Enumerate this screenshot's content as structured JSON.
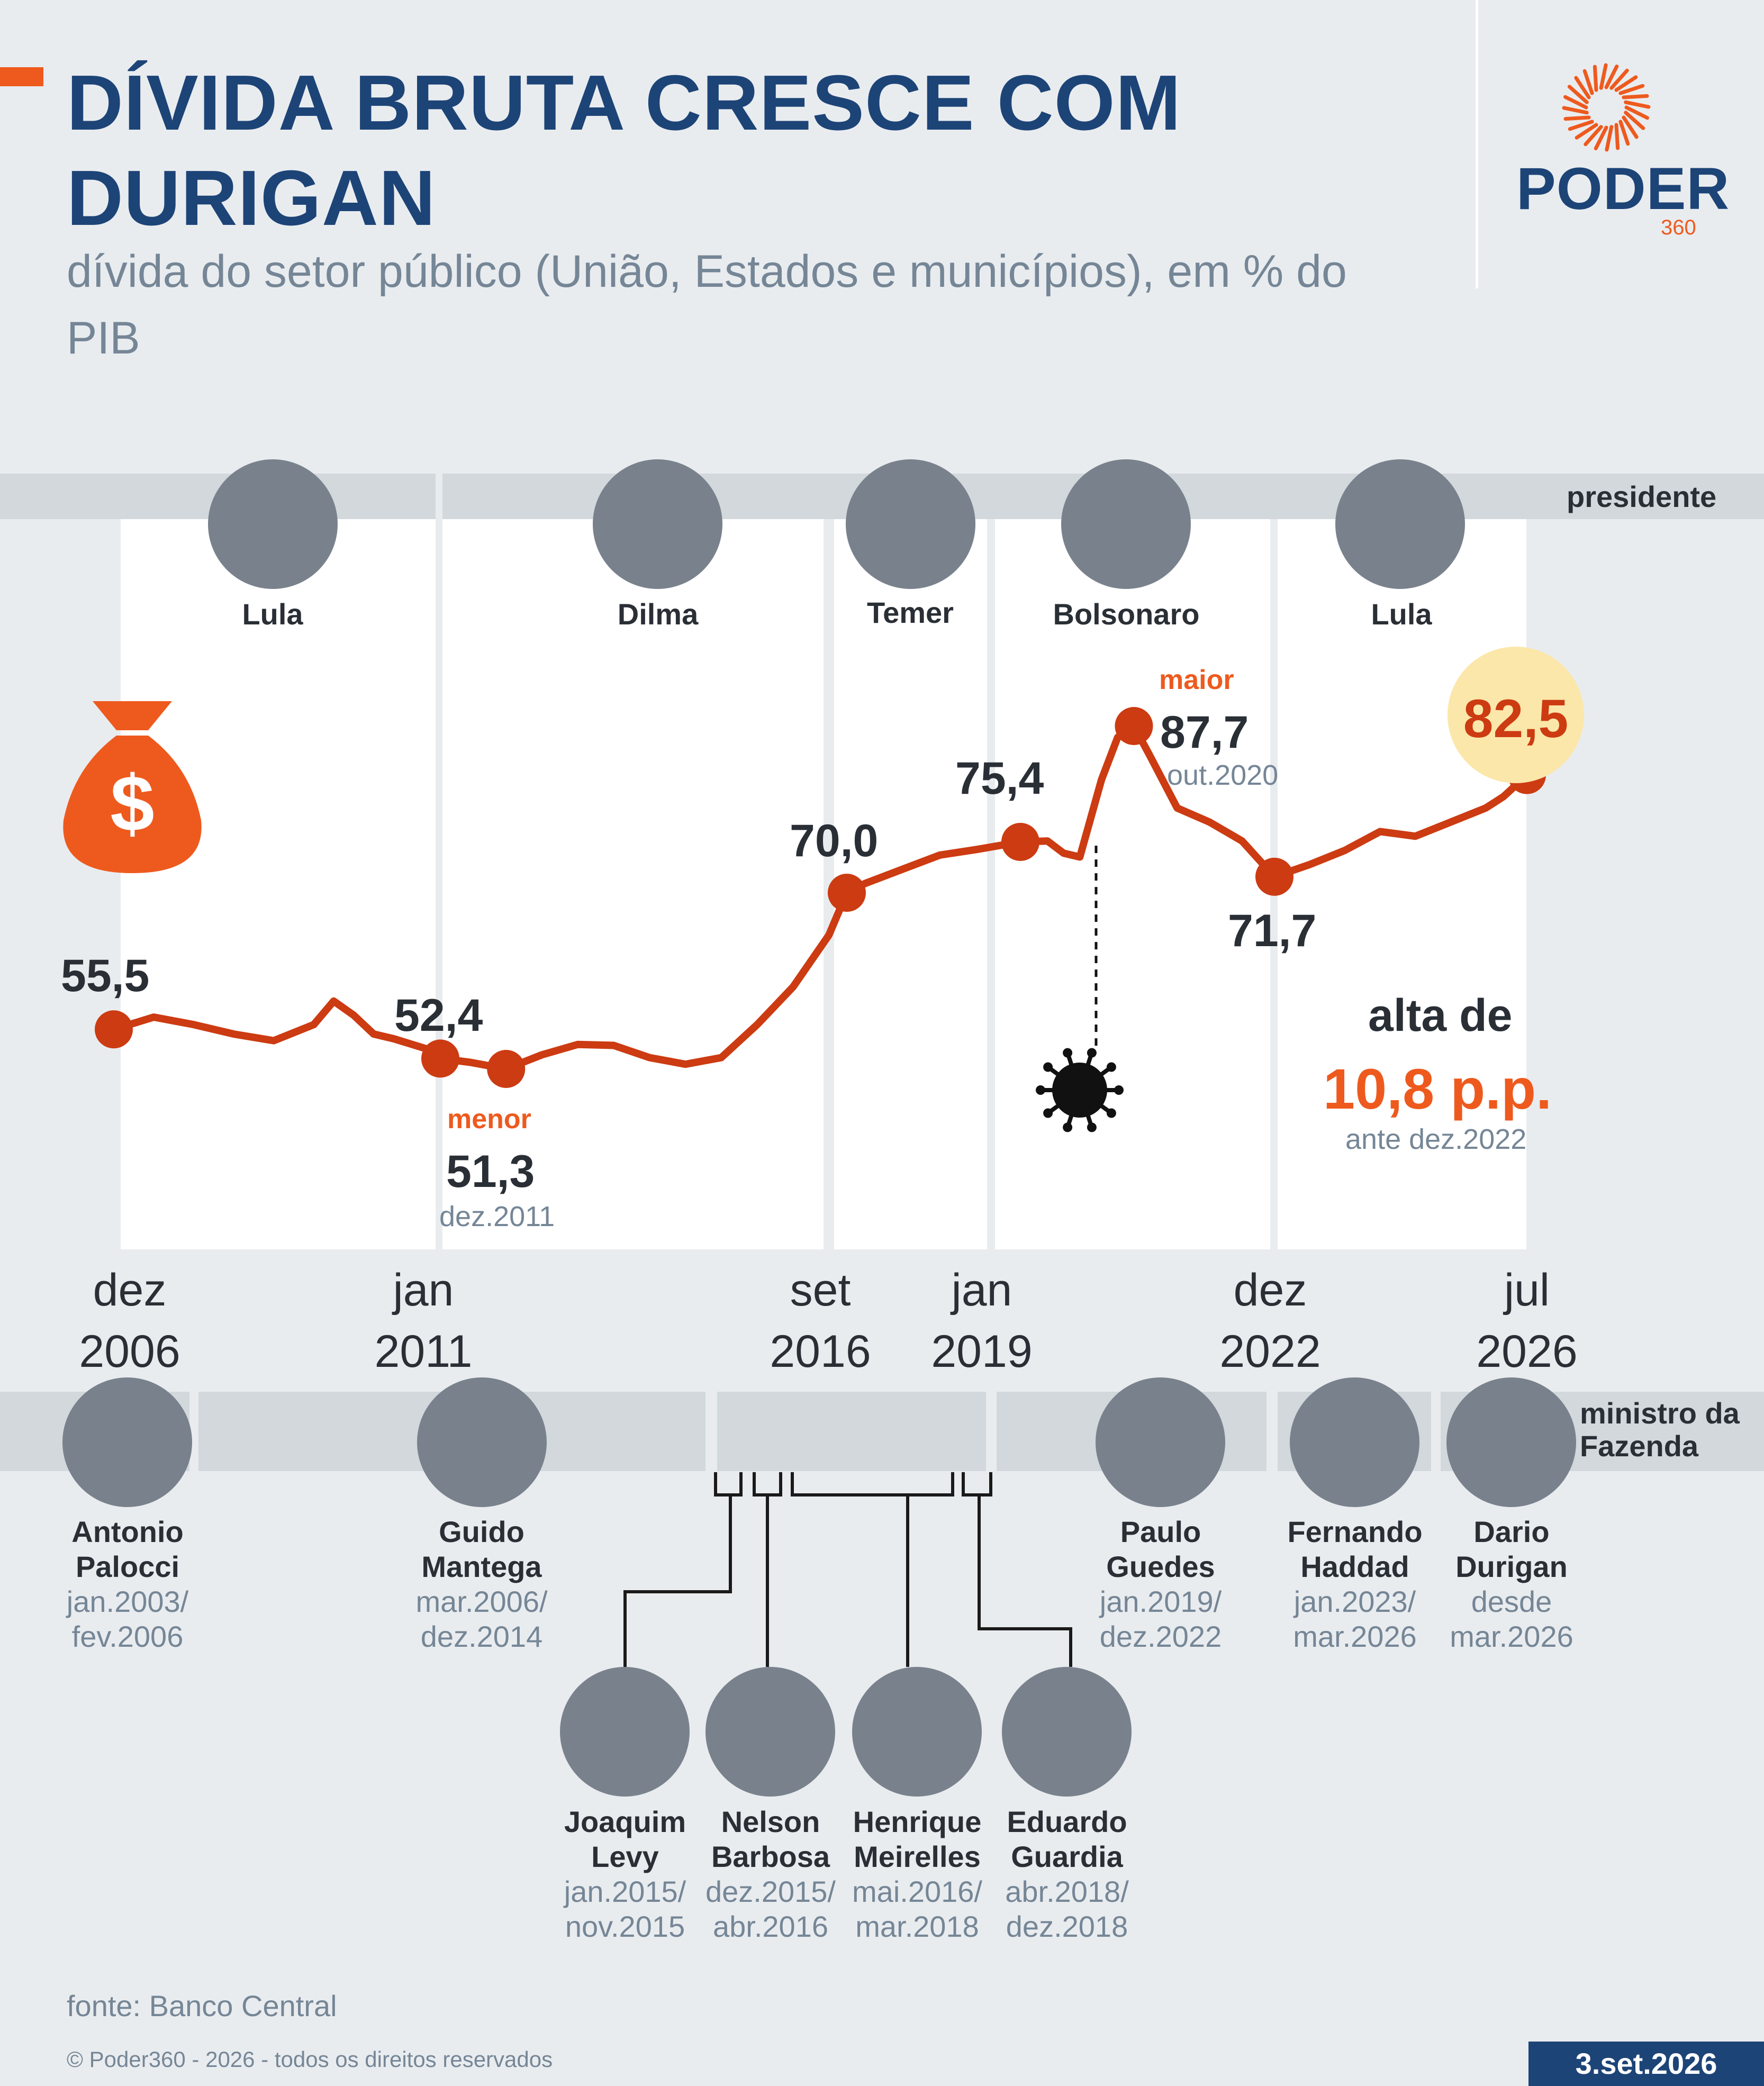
{
  "header": {
    "title": "DÍVIDA BRUTA CRESCE COM DURIGAN",
    "subtitle": "dívida do setor público (União, Estados e municípios), em % do PIB"
  },
  "logo": {
    "name": "PODER",
    "number": "360"
  },
  "colors": {
    "accent": "#ee5a1e",
    "brand": "#1d4477",
    "line": "#cc3b12",
    "highlight": "#fbe7a9",
    "band": "#d2d8dc"
  },
  "presidents_band": {
    "label": "presidente",
    "items": [
      {
        "name": "Lula",
        "icon": "portrait-photo"
      },
      {
        "name": "Dilma",
        "icon": "portrait-photo"
      },
      {
        "name": "Temer",
        "icon": "portrait-photo"
      },
      {
        "name": "Bolsonaro",
        "icon": "portrait-photo"
      },
      {
        "name": "Lula",
        "icon": "portrait-photo"
      }
    ]
  },
  "ministers_band": {
    "label_line1": "ministro da",
    "label_line2": "Fazenda",
    "items": [
      {
        "first": "Antonio",
        "last": "Palocci",
        "from": "jan.2003/",
        "to": "fev.2006"
      },
      {
        "first": "Guido",
        "last": "Mantega",
        "from": "mar.2006/",
        "to": "dez.2014"
      },
      {
        "first": "Joaquim",
        "last": "Levy",
        "from": "jan.2015/",
        "to": "nov.2015"
      },
      {
        "first": "Nelson",
        "last": "Barbosa",
        "from": "dez.2015/",
        "to": "abr.2016"
      },
      {
        "first": "Henrique",
        "last": "Meirelles",
        "from": "mai.2016/",
        "to": "mar.2018"
      },
      {
        "first": "Eduardo",
        "last": "Guardia",
        "from": "abr.2018/",
        "to": "dez.2018"
      },
      {
        "first": "Paulo",
        "last": "Guedes",
        "from": "jan.2019/",
        "to": "dez.2022"
      },
      {
        "first": "Fernando",
        "last": "Haddad",
        "from": "jan.2023/",
        "to": "mar.2026"
      },
      {
        "first": "Dario",
        "last": "Durigan",
        "from": "desde",
        "to": "mar.2026"
      }
    ]
  },
  "annotations": {
    "min_tag": "menor",
    "min_value": "51,3",
    "min_date": "dez.2011",
    "max_tag": "maior",
    "max_value": "87,7",
    "max_date": "out.2020",
    "change_prefix": "alta de",
    "change_value": "10,8 p.p.",
    "change_note": "ante dez.2022",
    "money_icon": "money-bag-icon",
    "virus_icon": "coronavirus-icon"
  },
  "chart_data": {
    "type": "line",
    "title": "DÍVIDA BRUTA CRESCE COM DURIGAN",
    "subtitle": "dívida do setor público (União, Estados e municípios), em % do PIB",
    "xlabel": "",
    "ylabel": "",
    "ylim": [
      45,
      95
    ],
    "grid": false,
    "unit": "% do PIB",
    "x_ticks": [
      {
        "label_top": "dez",
        "label_bottom": "2006",
        "date": "2006-12"
      },
      {
        "label_top": "jan",
        "label_bottom": "2011",
        "date": "2011-01"
      },
      {
        "label_top": "set",
        "label_bottom": "2016",
        "date": "2016-09"
      },
      {
        "label_top": "jan",
        "label_bottom": "2019",
        "date": "2019-01"
      },
      {
        "label_top": "dez",
        "label_bottom": "2022",
        "date": "2022-12"
      },
      {
        "label_top": "jul",
        "label_bottom": "2026",
        "date": "2026-07"
      }
    ],
    "series": [
      {
        "values_x": [
          "2006-12",
          "2007-06",
          "2007-12",
          "2008-06",
          "2008-12",
          "2009-06",
          "2009-09",
          "2009-12",
          "2010-03",
          "2010-06",
          "2010-12",
          "2011-01",
          "2011-06",
          "2011-12",
          "2012-06",
          "2012-12",
          "2013-06",
          "2013-12",
          "2014-06",
          "2014-12",
          "2015-06",
          "2015-12",
          "2016-06",
          "2016-09",
          "2016-12",
          "2017-06",
          "2017-12",
          "2018-06",
          "2019-01",
          "2019-06",
          "2019-09",
          "2019-12",
          "2020-04",
          "2020-07",
          "2020-10",
          "2021-01",
          "2021-06",
          "2021-12",
          "2022-06",
          "2022-12",
          "2023-06",
          "2023-12",
          "2024-06",
          "2024-12",
          "2025-06",
          "2025-12",
          "2026-03",
          "2026-07"
        ],
        "values": [
          55.5,
          56.8,
          56.0,
          55.0,
          54.3,
          56.0,
          58.5,
          57.0,
          55.0,
          54.5,
          53.2,
          52.4,
          52.0,
          51.3,
          52.8,
          53.9,
          53.8,
          52.5,
          51.8,
          52.5,
          56.0,
          60.0,
          65.5,
          70.0,
          71.0,
          72.5,
          74.0,
          74.6,
          75.4,
          75.5,
          74.2,
          73.8,
          82.0,
          86.5,
          87.7,
          84.5,
          79.0,
          77.5,
          75.5,
          71.7,
          73.0,
          74.5,
          76.5,
          76.0,
          77.5,
          79.0,
          80.2,
          82.5
        ]
      }
    ],
    "highlighted_points": [
      {
        "date": "2006-12",
        "value": 55.5,
        "label": "55,5"
      },
      {
        "date": "2011-01",
        "value": 52.4,
        "label": "52,4"
      },
      {
        "date": "2011-12",
        "value": 51.3,
        "label": "51,3"
      },
      {
        "date": "2016-09",
        "value": 70.0,
        "label": "70,0"
      },
      {
        "date": "2019-01",
        "value": 75.4,
        "label": "75,4"
      },
      {
        "date": "2020-10",
        "value": 87.7,
        "label": "87,7"
      },
      {
        "date": "2022-12",
        "value": 71.7,
        "label": "71,7"
      },
      {
        "date": "2026-07",
        "value": 82.5,
        "label": "82,5"
      }
    ],
    "pandemic_marker_date": "2020-03"
  },
  "footer": {
    "source": "fonte: Banco Central",
    "copyright": "© Poder360 - 2026 - todos os direitos reservados",
    "date": "3.set.2026"
  }
}
